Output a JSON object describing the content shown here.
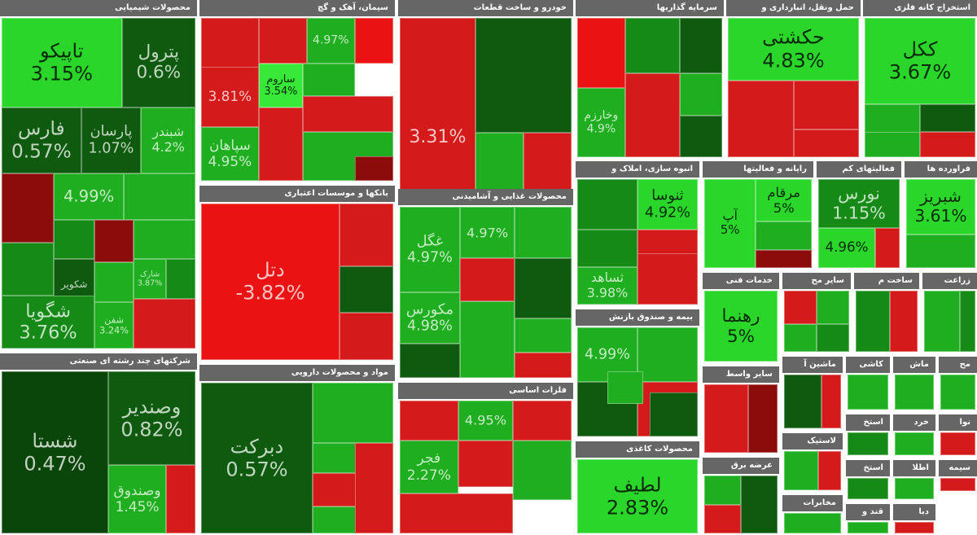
{
  "colors": {
    "strong_green": "#2ad62a",
    "green": "#1fae1f",
    "mid_green": "#168a16",
    "dark_green": "#0e5a0e",
    "darker_green": "#0a460a",
    "light_green": "#38e838",
    "red": "#d41a1a",
    "bright_red": "#ea1212",
    "dark_red": "#8c0c0c",
    "header": "#666666"
  },
  "sectors": [
    {
      "title": "محصولات شیمیایی",
      "tiles": [
        {
          "name": "تاپیکو",
          "pct": "3.15%",
          "color": "strong_green"
        },
        {
          "name": "پترول",
          "pct": "0.6%",
          "color": "dark_green"
        },
        {
          "name": "فارس",
          "pct": "0.57%",
          "color": "dark_green"
        },
        {
          "name": "پارسان",
          "pct": "1.07%",
          "color": "dark_green"
        },
        {
          "name": "شبندر",
          "pct": "4.2%",
          "color": "green"
        },
        {
          "name": "",
          "pct": "",
          "color": "dark_red"
        },
        {
          "name": "",
          "pct": "4.99%",
          "color": "green"
        },
        {
          "name": "",
          "pct": "",
          "color": "green"
        },
        {
          "name": "",
          "pct": "",
          "color": "mid_green"
        },
        {
          "name": "",
          "pct": "",
          "color": "dark_red"
        },
        {
          "name": "",
          "pct": "",
          "color": "green"
        },
        {
          "name": "شارک",
          "pct": "3.87%",
          "color": "green"
        },
        {
          "name": "",
          "pct": "",
          "color": "mid_green"
        },
        {
          "name": "",
          "pct": "",
          "color": "green"
        },
        {
          "name": "شفن",
          "pct": "3.24%",
          "color": "green"
        },
        {
          "name": "شکویر",
          "pct": "",
          "color": "dark_green"
        },
        {
          "name": "",
          "pct": "",
          "color": "mid_green"
        },
        {
          "name": "شگویا",
          "pct": "3.76%",
          "color": "mid_green"
        },
        {
          "name": "",
          "pct": "",
          "color": "red"
        }
      ]
    },
    {
      "title": "سیمان، آهک و گچ",
      "tiles": [
        {
          "name": "",
          "pct": "",
          "color": "red"
        },
        {
          "name": "",
          "pct": "",
          "color": "red"
        },
        {
          "name": "",
          "pct": "3.81%",
          "color": "red"
        },
        {
          "name": "",
          "pct": "4.97%",
          "color": "green"
        },
        {
          "name": "",
          "pct": "",
          "color": "bright_red"
        },
        {
          "name": "ساروم",
          "pct": "3.54%",
          "color": "light_green"
        },
        {
          "name": "",
          "pct": "",
          "color": "green"
        },
        {
          "name": "",
          "pct": "",
          "color": "red"
        },
        {
          "name": "سپاهان",
          "pct": "4.95%",
          "color": "green"
        },
        {
          "name": "",
          "pct": "",
          "color": "red"
        },
        {
          "name": "",
          "pct": "",
          "color": "green"
        },
        {
          "name": "",
          "pct": "",
          "color": "dark_red"
        }
      ]
    },
    {
      "title": "خودرو و ساخت قطعات",
      "tiles": [
        {
          "name": "",
          "pct": "3.31%",
          "color": "red"
        },
        {
          "name": "",
          "pct": "",
          "color": "dark_green"
        },
        {
          "name": "",
          "pct": "",
          "color": "green"
        },
        {
          "name": "",
          "pct": "",
          "color": "red"
        },
        {
          "name": "",
          "pct": "",
          "color": "red"
        },
        {
          "name": "",
          "pct": "",
          "color": "green"
        },
        {
          "name": "",
          "pct": "",
          "color": "dark_green"
        }
      ]
    },
    {
      "title": "سرمایه گذاریها",
      "tiles": [
        {
          "name": "",
          "pct": "",
          "color": "bright_red"
        },
        {
          "name": "",
          "pct": "",
          "color": "mid_green"
        },
        {
          "name": "",
          "pct": "",
          "color": "dark_green"
        },
        {
          "name": "وخارزم",
          "pct": "4.9%",
          "color": "green"
        },
        {
          "name": "",
          "pct": "",
          "color": "red"
        },
        {
          "name": "",
          "pct": "",
          "color": "green"
        },
        {
          "name": "",
          "pct": "",
          "color": "dark_green"
        }
      ]
    },
    {
      "title": "حمل ونقل، انبارداری و",
      "tiles": [
        {
          "name": "حکشتی",
          "pct": "4.83%",
          "color": "strong_green"
        },
        {
          "name": "",
          "pct": "",
          "color": "red"
        },
        {
          "name": "",
          "pct": "",
          "color": "red"
        },
        {
          "name": "",
          "pct": "",
          "color": "red"
        }
      ]
    },
    {
      "title": "استخراج کانه فلزی",
      "tiles": [
        {
          "name": "ککل",
          "pct": "3.67%",
          "color": "strong_green"
        },
        {
          "name": "",
          "pct": "",
          "color": "green"
        },
        {
          "name": "",
          "pct": "",
          "color": "dark_green"
        },
        {
          "name": "",
          "pct": "",
          "color": "red"
        },
        {
          "name": "",
          "pct": "",
          "color": "green"
        }
      ]
    },
    {
      "title": "بانکها و موسسات اعتباری",
      "tiles": [
        {
          "name": "دتل",
          "pct": "-3.82%",
          "color": "bright_red"
        },
        {
          "name": "",
          "pct": "",
          "color": "red"
        },
        {
          "name": "",
          "pct": "",
          "color": "dark_green"
        },
        {
          "name": "",
          "pct": "",
          "color": "red"
        }
      ]
    },
    {
      "title": "محصولات غذایی و آشامیدنی",
      "tiles": [
        {
          "name": "غگل",
          "pct": "4.97%",
          "color": "green"
        },
        {
          "name": "",
          "pct": "4.97%",
          "color": "green"
        },
        {
          "name": "",
          "pct": "",
          "color": "green"
        },
        {
          "name": "",
          "pct": "",
          "color": "red"
        },
        {
          "name": "مکورس",
          "pct": "4.98%",
          "color": "green"
        },
        {
          "name": "",
          "pct": "",
          "color": "dark_green"
        },
        {
          "name": "",
          "pct": "",
          "color": "green"
        },
        {
          "name": "",
          "pct": "",
          "color": "dark_green"
        },
        {
          "name": "",
          "pct": "",
          "color": "green"
        },
        {
          "name": "",
          "pct": "",
          "color": "red"
        }
      ]
    },
    {
      "title": "انبوه سازی، املاک و",
      "tiles": [
        {
          "name": "",
          "pct": "",
          "color": "mid_green"
        },
        {
          "name": "ثنوسا",
          "pct": "4.92%",
          "color": "strong_green"
        },
        {
          "name": "",
          "pct": "",
          "color": "mid_green"
        },
        {
          "name": "",
          "pct": "",
          "color": "red"
        },
        {
          "name": "ثساهد",
          "pct": "3.98%",
          "color": "green"
        },
        {
          "name": "",
          "pct": "",
          "color": "red"
        }
      ]
    },
    {
      "title": "رایانه و فعالیتها",
      "tiles": [
        {
          "name": "آپ",
          "pct": "5%",
          "color": "strong_green"
        },
        {
          "name": "مرقام",
          "pct": "5%",
          "color": "strong_green"
        },
        {
          "name": "",
          "pct": "",
          "color": "green"
        },
        {
          "name": "",
          "pct": "",
          "color": "dark_red"
        }
      ]
    },
    {
      "title": "فعالیتهای کم",
      "tiles": [
        {
          "name": "نورس",
          "pct": "1.15%",
          "color": "mid_green"
        },
        {
          "name": "",
          "pct": "4.96%",
          "color": "strong_green"
        },
        {
          "name": "",
          "pct": "",
          "color": "red"
        }
      ]
    },
    {
      "title": "فراورده ها",
      "tiles": [
        {
          "name": "شبریز",
          "pct": "3.61%",
          "color": "strong_green"
        },
        {
          "name": "",
          "pct": "",
          "color": "green"
        }
      ]
    },
    {
      "title": "خدمات فنی",
      "tiles": [
        {
          "name": "رهنما",
          "pct": "5%",
          "color": "strong_green"
        }
      ]
    },
    {
      "title": "سایر مح",
      "tiles": [
        {
          "name": "",
          "pct": "",
          "color": "red"
        },
        {
          "name": "",
          "pct": "",
          "color": "green"
        },
        {
          "name": "",
          "pct": "",
          "color": "green"
        },
        {
          "name": "",
          "pct": "",
          "color": "mid_green"
        }
      ]
    },
    {
      "title": "ساخت م",
      "tiles": [
        {
          "name": "",
          "pct": "",
          "color": "mid_green"
        },
        {
          "name": "",
          "pct": "",
          "color": "red"
        }
      ]
    },
    {
      "title": "زراعت",
      "tiles": [
        {
          "name": "",
          "pct": "",
          "color": "green"
        },
        {
          "name": "",
          "pct": "",
          "color": "mid_green"
        }
      ]
    },
    {
      "title": "مواد و محصولات دارویی",
      "tiles": [
        {
          "name": "دبرکت",
          "pct": "0.57%",
          "color": "dark_green"
        },
        {
          "name": "",
          "pct": "",
          "color": "green"
        },
        {
          "name": "",
          "pct": "",
          "color": "green"
        },
        {
          "name": "",
          "pct": "",
          "color": "red"
        },
        {
          "name": "",
          "pct": "",
          "color": "green"
        },
        {
          "name": "",
          "pct": "",
          "color": "red"
        }
      ]
    },
    {
      "title": "فلزات اساسی",
      "tiles": [
        {
          "name": "",
          "pct": "",
          "color": "red"
        },
        {
          "name": "",
          "pct": "4.95%",
          "color": "green"
        },
        {
          "name": "",
          "pct": "",
          "color": "red"
        },
        {
          "name": "فجر",
          "pct": "2.27%",
          "color": "green"
        },
        {
          "name": "",
          "pct": "",
          "color": "red"
        },
        {
          "name": "",
          "pct": "",
          "color": "green"
        },
        {
          "name": "",
          "pct": "",
          "color": "red"
        }
      ]
    },
    {
      "title": "بیمه و صندوق بازنش",
      "tiles": [
        {
          "name": "",
          "pct": "4.99%",
          "color": "green"
        },
        {
          "name": "",
          "pct": "",
          "color": "green"
        },
        {
          "name": "",
          "pct": "",
          "color": "dark_green"
        },
        {
          "name": "",
          "pct": "",
          "color": "red"
        },
        {
          "name": "",
          "pct": "",
          "color": "green"
        },
        {
          "name": "",
          "pct": "",
          "color": "dark_green"
        }
      ]
    },
    {
      "title": "سایر واسط",
      "tiles": [
        {
          "name": "",
          "pct": "",
          "color": "red"
        },
        {
          "name": "",
          "pct": "",
          "color": "dark_red"
        }
      ]
    },
    {
      "title": "محصولات کاغذی",
      "tiles": [
        {
          "name": "لطیف",
          "pct": "2.83%",
          "color": "strong_green"
        }
      ]
    },
    {
      "title": "عرضه برق",
      "tiles": [
        {
          "name": "",
          "pct": "",
          "color": "green"
        },
        {
          "name": "",
          "pct": "",
          "color": "dark_green"
        },
        {
          "name": "",
          "pct": "",
          "color": "red"
        }
      ]
    },
    {
      "title": "ماشین آ",
      "tiles": [
        {
          "name": "",
          "pct": "",
          "color": "dark_green"
        },
        {
          "name": "",
          "pct": "",
          "color": "red"
        }
      ]
    },
    {
      "title": "کاشی",
      "tiles": [
        {
          "name": "",
          "pct": "",
          "color": "green"
        }
      ]
    },
    {
      "title": "ماش",
      "tiles": [
        {
          "name": "",
          "pct": "",
          "color": "green"
        }
      ]
    },
    {
      "title": "مح",
      "tiles": [
        {
          "name": "",
          "pct": "",
          "color": "green"
        }
      ]
    },
    {
      "title": "لاستیک",
      "tiles": [
        {
          "name": "",
          "pct": "",
          "color": "green"
        },
        {
          "name": "",
          "pct": "",
          "color": "red"
        }
      ]
    },
    {
      "title": "استخ",
      "tiles": [
        {
          "name": "",
          "pct": "",
          "color": "mid_green"
        }
      ]
    },
    {
      "title": "خرد",
      "tiles": [
        {
          "name": "",
          "pct": "",
          "color": "green"
        }
      ]
    },
    {
      "title": "نوا",
      "tiles": [
        {
          "name": "",
          "pct": "",
          "color": "red"
        }
      ]
    },
    {
      "title": "استخ",
      "tiles": [
        {
          "name": "",
          "pct": "",
          "color": "mid_green"
        }
      ]
    },
    {
      "title": "اطلا",
      "tiles": [
        {
          "name": "",
          "pct": "",
          "color": "green"
        }
      ]
    },
    {
      "title": "سیمه",
      "tiles": [
        {
          "name": "",
          "pct": "",
          "color": "red"
        }
      ]
    },
    {
      "title": "مخابرات",
      "tiles": [
        {
          "name": "",
          "pct": "",
          "color": "green"
        }
      ]
    },
    {
      "title": "قند و",
      "tiles": [
        {
          "name": "",
          "pct": "",
          "color": "green"
        }
      ]
    },
    {
      "title": "دبا",
      "tiles": [
        {
          "name": "",
          "pct": "",
          "color": "red"
        }
      ]
    },
    {
      "title": "شرکتهای چند رشته ای صنعتی",
      "tiles": [
        {
          "name": "شستا",
          "pct": "0.47%",
          "color": "darker_green"
        },
        {
          "name": "وصندیر",
          "pct": "0.82%",
          "color": "dark_green"
        },
        {
          "name": "وصندوق",
          "pct": "1.45%",
          "color": "green"
        },
        {
          "name": "",
          "pct": "",
          "color": "red"
        }
      ]
    }
  ]
}
